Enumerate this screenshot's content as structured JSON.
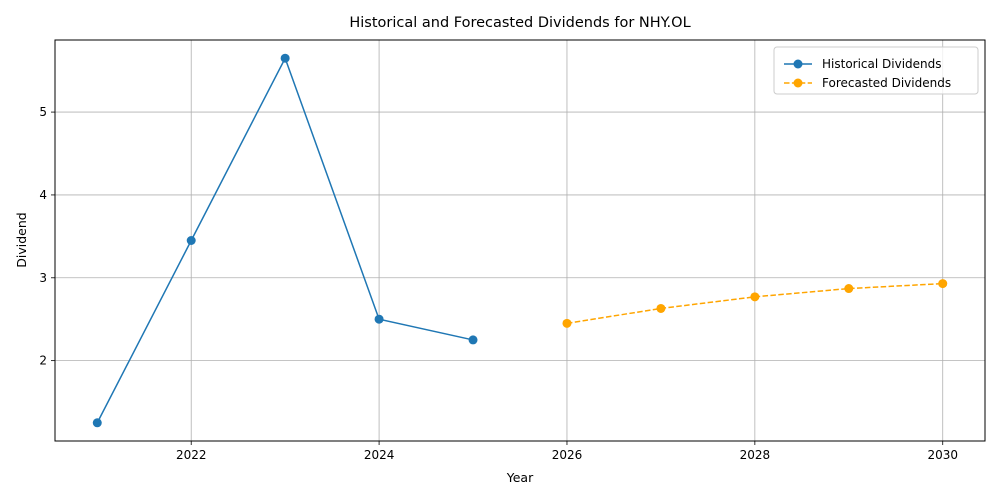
{
  "chart_data": {
    "type": "line",
    "title": "Historical and Forecasted Dividends for NHY.OL",
    "xlabel": "Year",
    "ylabel": "Dividend",
    "xlim": [
      2020.55,
      2030.45
    ],
    "ylim": [
      1.03,
      5.87
    ],
    "x_ticks": [
      2022,
      2024,
      2026,
      2028,
      2030
    ],
    "y_ticks": [
      2,
      3,
      4,
      5
    ],
    "grid": true,
    "legend_position": "top-right",
    "series": [
      {
        "name": "Historical Dividends",
        "color": "#1f77b4",
        "line_style": "solid",
        "marker": "circle",
        "x": [
          2021,
          2022,
          2023,
          2024,
          2025
        ],
        "values": [
          1.25,
          3.45,
          5.65,
          2.5,
          2.25
        ]
      },
      {
        "name": "Forecasted Dividends",
        "color": "#ffa500",
        "line_style": "dashed",
        "marker": "circle",
        "x": [
          2026,
          2027,
          2028,
          2029,
          2030
        ],
        "values": [
          2.45,
          2.63,
          2.77,
          2.87,
          2.93
        ]
      }
    ]
  }
}
